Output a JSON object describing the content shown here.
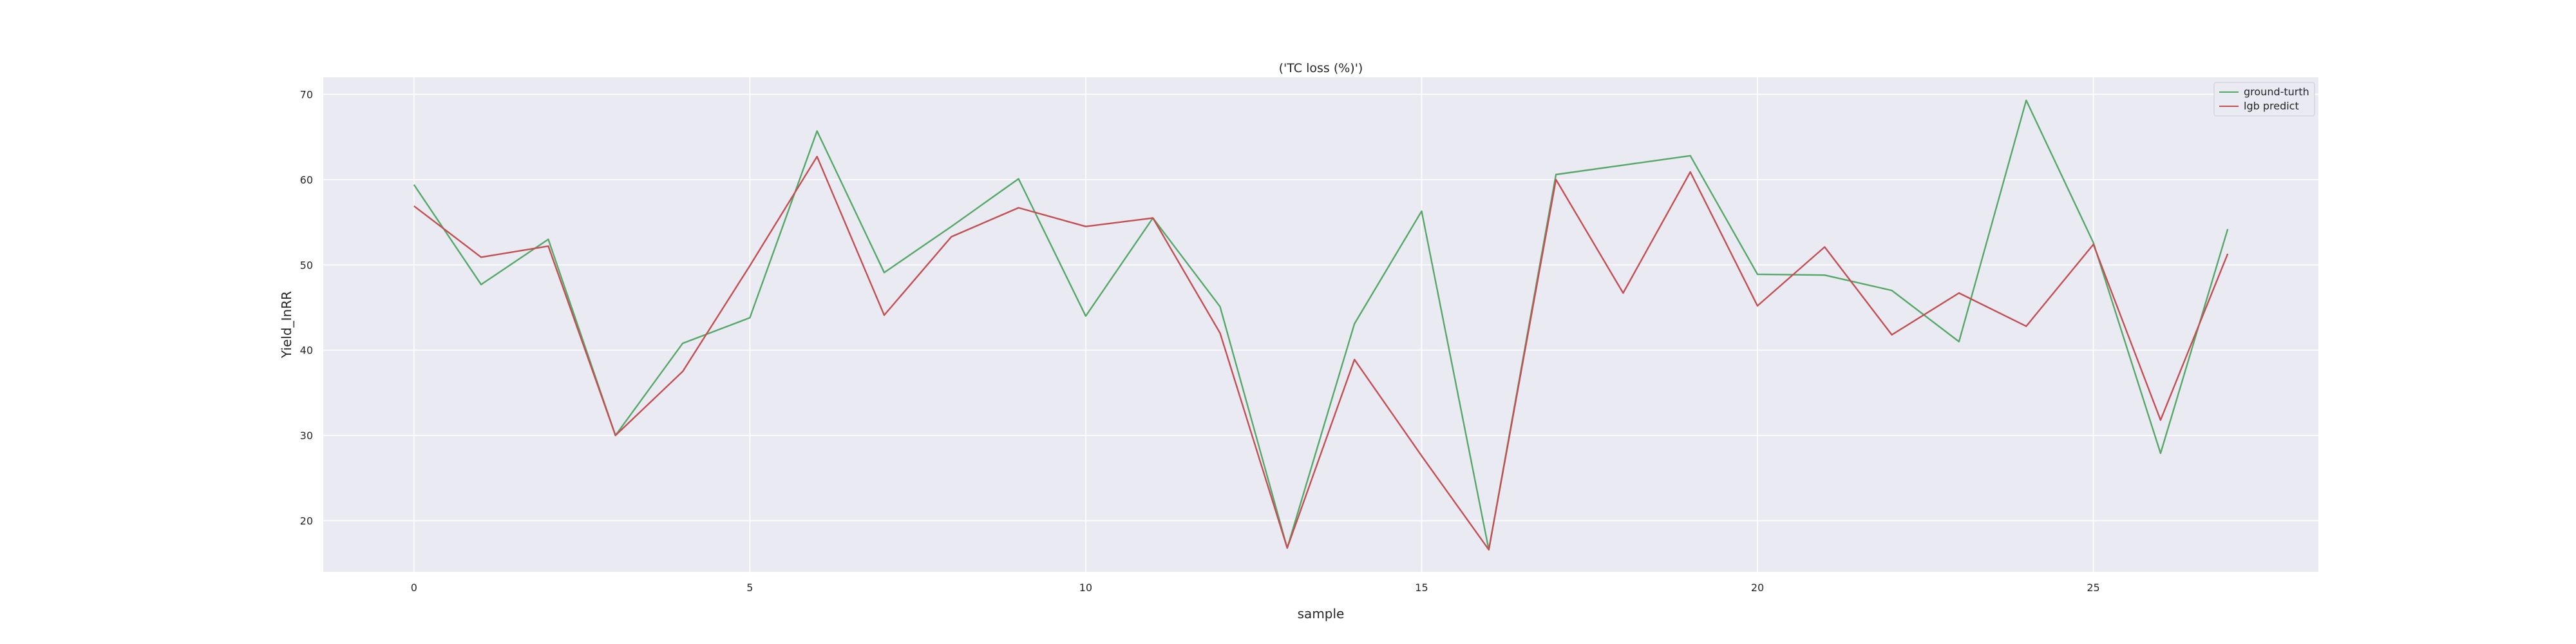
{
  "chart_data": {
    "type": "line",
    "title": "('TC loss (%)')",
    "xlabel": "sample",
    "ylabel": "Yield_InRR",
    "xlim": [
      -1.35,
      28.35
    ],
    "ylim": [
      14,
      72
    ],
    "xticks": [
      0,
      5,
      10,
      15,
      20,
      25
    ],
    "yticks": [
      20,
      30,
      40,
      50,
      60,
      70
    ],
    "grid": true,
    "legend_position": "top-right",
    "x": [
      0,
      1,
      2,
      3,
      4,
      5,
      6,
      7,
      8,
      9,
      10,
      11,
      12,
      13,
      14,
      15,
      16,
      17,
      18,
      19,
      20,
      21,
      22,
      23,
      24,
      25,
      26,
      27
    ],
    "series": [
      {
        "name": "ground-turth",
        "color": "#55a868",
        "values": [
          59.4,
          47.7,
          53.0,
          30.0,
          40.8,
          43.8,
          65.7,
          49.1,
          54.5,
          60.1,
          44.0,
          55.5,
          45.1,
          16.8,
          43.1,
          56.3,
          16.6,
          60.6,
          61.7,
          62.8,
          48.9,
          48.8,
          47.0,
          41.0,
          69.3,
          52.6,
          27.9,
          54.2
        ]
      },
      {
        "name": "lgb predict",
        "color": "#c44e52",
        "values": [
          56.9,
          50.9,
          52.2,
          30.0,
          37.5,
          49.9,
          62.7,
          44.1,
          53.3,
          56.7,
          54.5,
          55.5,
          42.0,
          16.8,
          38.9,
          27.6,
          16.6,
          60.0,
          46.7,
          60.9,
          45.2,
          52.1,
          41.8,
          46.7,
          42.8,
          52.4,
          31.8,
          51.3
        ]
      }
    ]
  }
}
